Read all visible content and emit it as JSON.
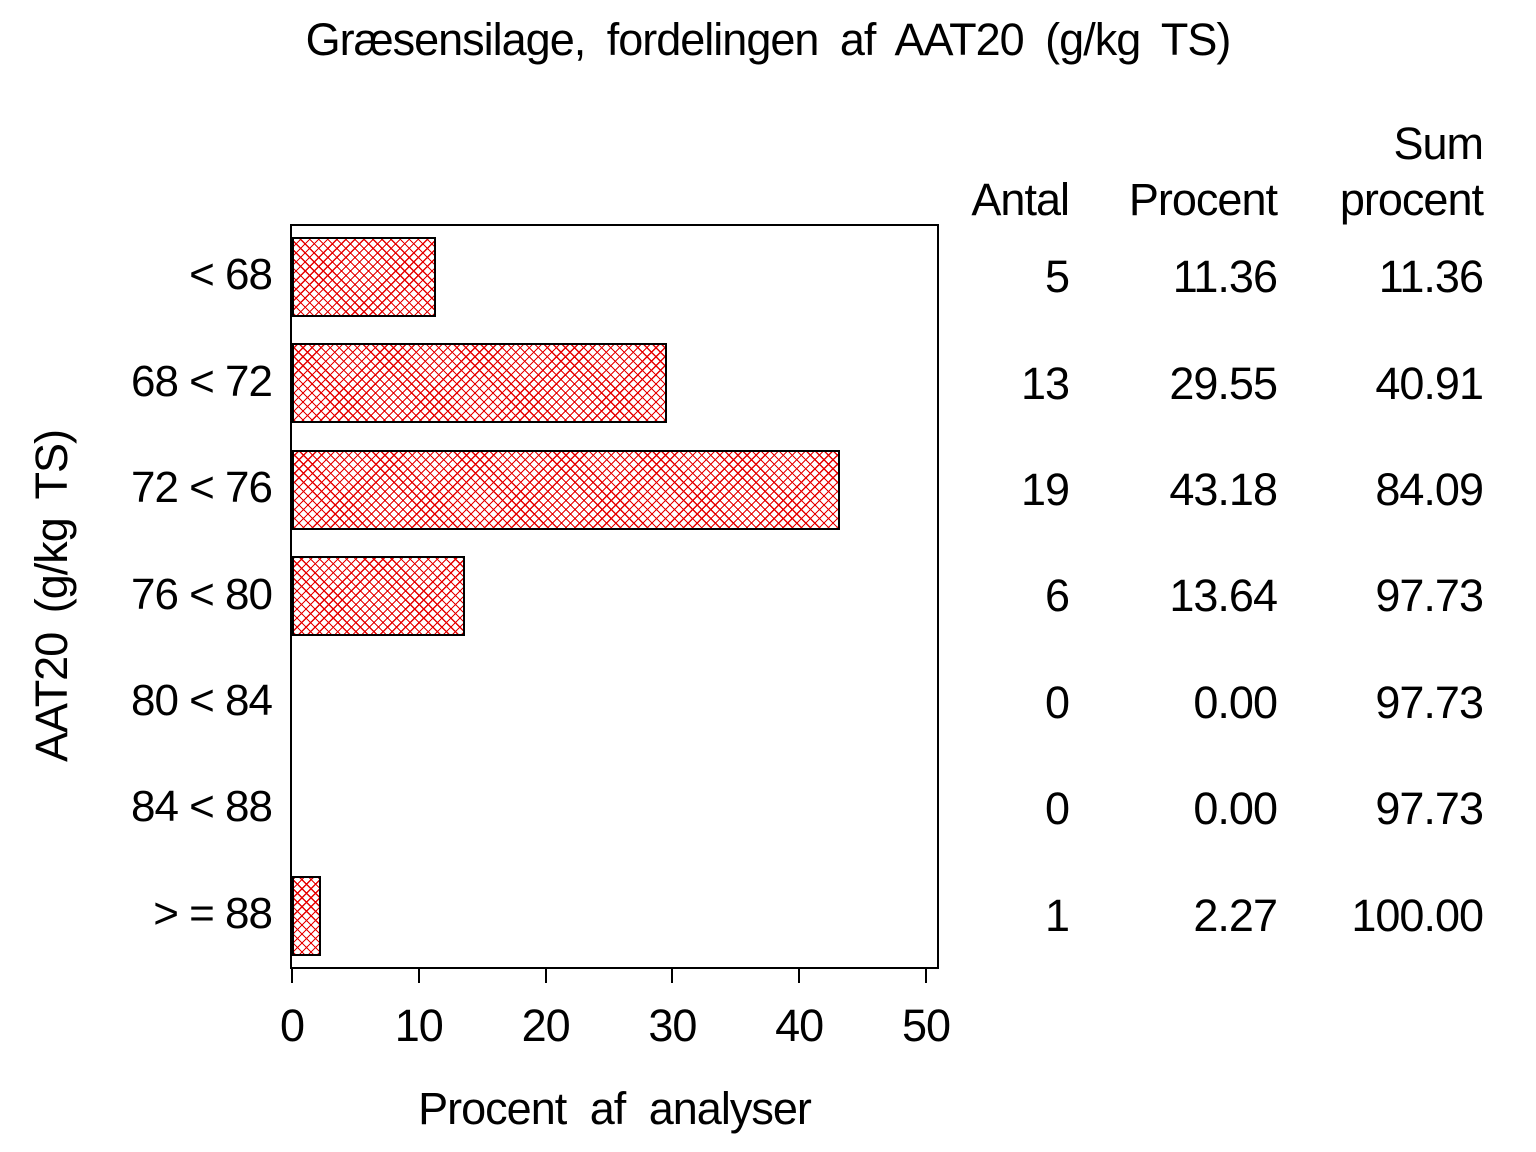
{
  "title": "Græsensilage, fordelingen af AAT20 (g/kg TS)",
  "chart_data": {
    "type": "bar",
    "orientation": "horizontal",
    "title": "Græsensilage, fordelingen af AAT20 (g/kg TS)",
    "categories": [
      "< 68",
      "68 < 72",
      "72 < 76",
      "76 < 80",
      "80 < 84",
      "84 < 88",
      "> = 88"
    ],
    "values": [
      11.36,
      29.55,
      43.18,
      13.64,
      0.0,
      0.0,
      2.27
    ],
    "xlabel": "Procent af analyser",
    "ylabel": "AAT20 (g/kg TS)",
    "xlim": [
      0,
      50
    ],
    "xticks": [
      "0",
      "10",
      "20",
      "30",
      "40",
      "50"
    ],
    "grid": false,
    "legend": "none",
    "bar_pattern": "diagonal-crosshatch",
    "bar_color": "#e60000",
    "frame_color": "#000000"
  },
  "stat_table": {
    "header": {
      "antal": "Antal",
      "procent": "Procent",
      "sum_line1": "Sum",
      "sum_line2": "procent"
    },
    "rows": [
      [
        "5",
        "11.36",
        "11.36"
      ],
      [
        "13",
        "29.55",
        "40.91"
      ],
      [
        "19",
        "43.18",
        "84.09"
      ],
      [
        "6",
        "13.64",
        "97.73"
      ],
      [
        "0",
        "0.00",
        "97.73"
      ],
      [
        "0",
        "0.00",
        "97.73"
      ],
      [
        "1",
        "2.27",
        "100.00"
      ]
    ]
  }
}
